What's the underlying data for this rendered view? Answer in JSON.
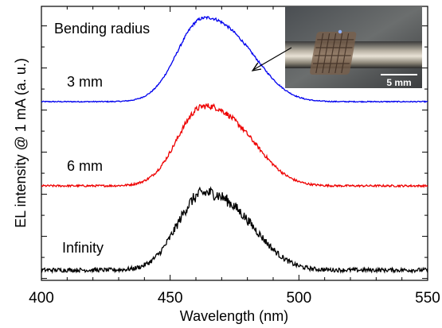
{
  "chart_data": {
    "type": "line",
    "xlabel": "Wavelength (nm)",
    "ylabel": "EL intensity @ 1 mA (a. u.)",
    "xlim": [
      400,
      550
    ],
    "x_ticks": [
      "400",
      "450",
      "500",
      "550"
    ],
    "y_ticks_labeled": false,
    "grid": false,
    "legend_title": "Bending radius",
    "series": [
      {
        "name": "3 mm",
        "color": "#0000ee",
        "baseline": 2.0,
        "peak_x": 462,
        "peak_height": 1.0,
        "noise": 0.006
      },
      {
        "name": "6 mm",
        "color": "#ee0000",
        "baseline": 1.0,
        "peak_x": 462,
        "peak_height": 0.95,
        "noise": 0.012
      },
      {
        "name": "Infinity",
        "color": "#000000",
        "baseline": 0.0,
        "peak_x": 462,
        "peak_height": 0.92,
        "noise": 0.025
      }
    ],
    "inset": {
      "description_icon": "bent-device-photo",
      "scale_bar_label": "5 mm",
      "arrow_points_to_x": 478
    }
  }
}
